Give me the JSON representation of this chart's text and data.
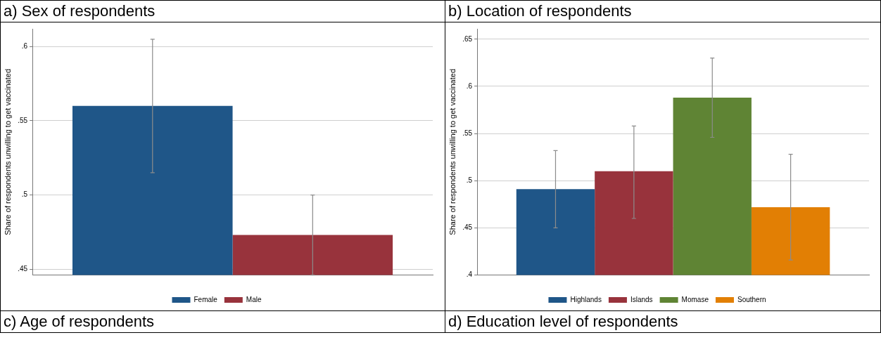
{
  "chart_data": [
    {
      "type": "bar",
      "title": "a) Sex of respondents",
      "ylabel": "Share of respondents unwilling to get vaccinated",
      "categories": [
        null
      ],
      "series": [
        {
          "name": "Female",
          "color": "#1f5688",
          "values": [
            0.56
          ],
          "errors": [
            [
              0.515,
              0.605
            ]
          ]
        },
        {
          "name": "Male",
          "color": "#98333c",
          "values": [
            0.473
          ],
          "errors": [
            [
              0.446,
              0.5
            ]
          ]
        }
      ],
      "ylim": [
        0.446,
        0.612
      ],
      "yticks": [
        {
          "value": 0.45,
          "label": ".45"
        },
        {
          "value": 0.5,
          "label": ".5"
        },
        {
          "value": 0.55,
          "label": ".55"
        },
        {
          "value": 0.6,
          "label": ".6"
        }
      ],
      "grid": "y",
      "legend": "bottom"
    },
    {
      "type": "bar",
      "title": "b) Location of respondents",
      "ylabel": "Share of respondents unwilling to get vaccinated",
      "categories": [
        null
      ],
      "series": [
        {
          "name": "Highlands",
          "color": "#1f5688",
          "values": [
            0.491
          ],
          "errors": [
            [
              0.45,
              0.532
            ]
          ]
        },
        {
          "name": "Islands",
          "color": "#98333c",
          "values": [
            0.51
          ],
          "errors": [
            [
              0.46,
              0.558
            ]
          ]
        },
        {
          "name": "Momase",
          "color": "#5f8434",
          "values": [
            0.588
          ],
          "errors": [
            [
              0.546,
              0.63
            ]
          ]
        },
        {
          "name": "Southern",
          "color": "#e27f04",
          "values": [
            0.472
          ],
          "errors": [
            [
              0.416,
              0.528
            ]
          ]
        }
      ],
      "ylim": [
        0.4,
        0.661
      ],
      "yticks": [
        {
          "value": 0.4,
          "label": ".4"
        },
        {
          "value": 0.45,
          "label": ".45"
        },
        {
          "value": 0.5,
          "label": ".5"
        },
        {
          "value": 0.55,
          "label": ".55"
        },
        {
          "value": 0.6,
          "label": ".6"
        },
        {
          "value": 0.65,
          "label": ".65"
        }
      ],
      "grid": "y",
      "legend": "bottom"
    },
    {
      "type": "other",
      "title": "c) Age of respondents"
    },
    {
      "type": "other",
      "title": "d) Education level of respondents"
    }
  ]
}
